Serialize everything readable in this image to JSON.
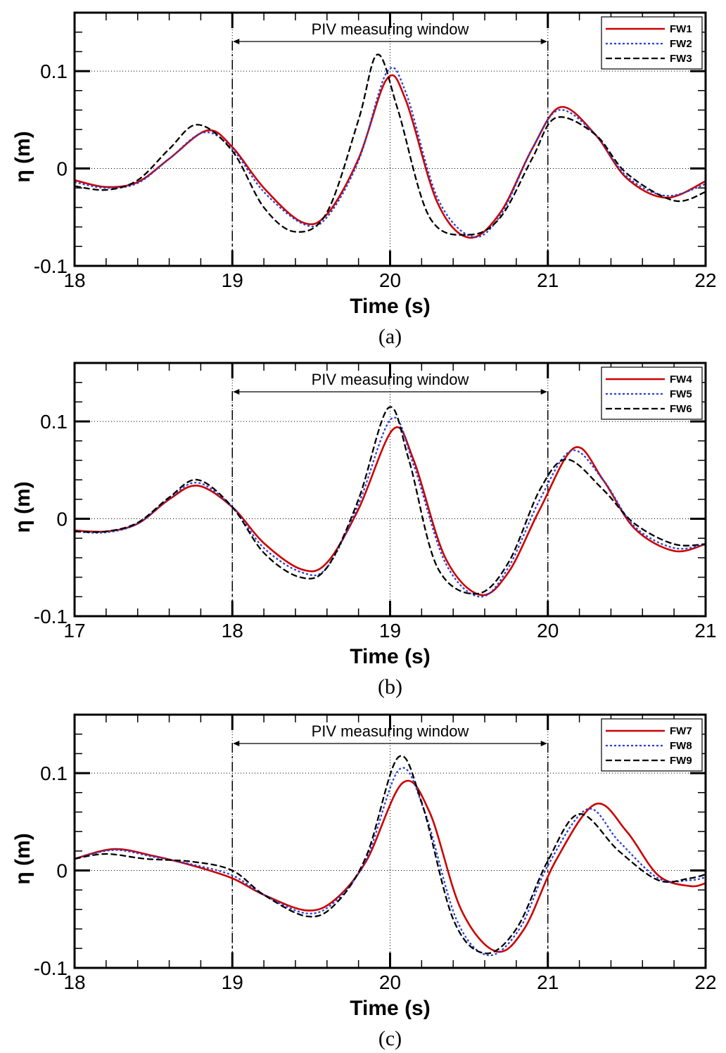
{
  "chart_data": [
    {
      "type": "line",
      "panel_label": "(a)",
      "xlabel": "Time (s)",
      "ylabel": "η (m)",
      "xlim": [
        18,
        22
      ],
      "ylim": [
        -0.1,
        0.16
      ],
      "xticks": [
        18,
        19,
        20,
        21,
        22
      ],
      "yticks": [
        -0.1,
        0,
        0.1
      ],
      "ytick_labels": [
        "-0.1",
        "0",
        "0.1"
      ],
      "grid": "dotted",
      "window": {
        "label": "PIV measuring window",
        "start": 19,
        "end": 21
      },
      "legend_position": "top-right",
      "series": [
        {
          "name": "FW1",
          "color": "#cc0000",
          "style": "solid",
          "x": [
            18,
            18.2,
            18.4,
            18.6,
            18.84,
            19.0,
            19.2,
            19.44,
            19.6,
            19.8,
            19.98,
            20.1,
            20.3,
            20.5,
            20.7,
            20.9,
            21.08,
            21.3,
            21.5,
            21.75,
            22
          ],
          "y": [
            -0.012,
            -0.019,
            -0.014,
            0.01,
            0.039,
            0.022,
            -0.02,
            -0.055,
            -0.047,
            0.01,
            0.092,
            0.07,
            -0.035,
            -0.071,
            -0.045,
            0.02,
            0.063,
            0.035,
            -0.01,
            -0.03,
            -0.013
          ]
        },
        {
          "name": "FW2",
          "color": "#2a3fd6",
          "style": "dotted",
          "x": [
            18,
            18.2,
            18.4,
            18.6,
            18.82,
            19.0,
            19.2,
            19.45,
            19.6,
            19.8,
            19.98,
            20.1,
            20.3,
            20.52,
            20.7,
            20.9,
            21.07,
            21.3,
            21.5,
            21.75,
            22
          ],
          "y": [
            -0.014,
            -0.02,
            -0.015,
            0.01,
            0.037,
            0.02,
            -0.024,
            -0.057,
            -0.05,
            0.008,
            0.099,
            0.078,
            -0.03,
            -0.07,
            -0.048,
            0.02,
            0.06,
            0.035,
            -0.008,
            -0.028,
            -0.016
          ]
        },
        {
          "name": "FW3",
          "color": "#000000",
          "style": "dashed",
          "x": [
            18,
            18.2,
            18.4,
            18.6,
            18.78,
            19.0,
            19.2,
            19.4,
            19.6,
            19.8,
            19.92,
            20.05,
            20.25,
            20.5,
            20.7,
            20.9,
            21.05,
            21.3,
            21.5,
            21.8,
            22
          ],
          "y": [
            -0.018,
            -0.022,
            -0.012,
            0.02,
            0.045,
            0.018,
            -0.04,
            -0.065,
            -0.045,
            0.05,
            0.117,
            0.06,
            -0.05,
            -0.068,
            -0.05,
            0.01,
            0.052,
            0.035,
            -0.005,
            -0.033,
            -0.024
          ]
        }
      ]
    },
    {
      "type": "line",
      "panel_label": "(b)",
      "xlabel": "Time (s)",
      "ylabel": "η (m)",
      "xlim": [
        17,
        21
      ],
      "ylim": [
        -0.1,
        0.16
      ],
      "xticks": [
        17,
        18,
        19,
        20,
        21
      ],
      "yticks": [
        -0.1,
        0,
        0.1
      ],
      "ytick_labels": [
        "-0.1",
        "0",
        "0.1"
      ],
      "grid": "dotted",
      "window": {
        "label": "PIV measuring window",
        "start": 18,
        "end": 20
      },
      "legend_position": "top-right",
      "series": [
        {
          "name": "FW4",
          "color": "#cc0000",
          "style": "solid",
          "x": [
            17,
            17.2,
            17.4,
            17.6,
            17.78,
            18.0,
            18.2,
            18.44,
            18.6,
            18.8,
            19.02,
            19.15,
            19.35,
            19.57,
            19.75,
            19.95,
            20.17,
            20.35,
            20.55,
            20.8,
            21
          ],
          "y": [
            -0.012,
            -0.013,
            -0.005,
            0.02,
            0.034,
            0.012,
            -0.025,
            -0.052,
            -0.045,
            0.01,
            0.092,
            0.06,
            -0.04,
            -0.078,
            -0.055,
            0.01,
            0.073,
            0.04,
            -0.01,
            -0.033,
            -0.026
          ]
        },
        {
          "name": "FW5",
          "color": "#2a3fd6",
          "style": "dotted",
          "x": [
            17,
            17.2,
            17.4,
            17.6,
            17.78,
            18.0,
            18.2,
            18.44,
            18.6,
            18.8,
            19.01,
            19.15,
            19.35,
            19.57,
            19.75,
            19.95,
            20.15,
            20.35,
            20.55,
            20.8,
            21
          ],
          "y": [
            -0.013,
            -0.014,
            -0.005,
            0.021,
            0.037,
            0.012,
            -0.03,
            -0.055,
            -0.05,
            0.015,
            0.103,
            0.055,
            -0.045,
            -0.08,
            -0.05,
            0.02,
            0.07,
            0.04,
            -0.008,
            -0.03,
            -0.026
          ]
        },
        {
          "name": "FW6",
          "color": "#000000",
          "style": "dashed",
          "x": [
            17,
            17.2,
            17.4,
            17.6,
            17.78,
            18.0,
            18.2,
            18.43,
            18.6,
            18.8,
            18.99,
            19.12,
            19.3,
            19.55,
            19.75,
            19.95,
            20.12,
            20.35,
            20.55,
            20.8,
            21
          ],
          "y": [
            -0.013,
            -0.013,
            -0.004,
            0.022,
            0.04,
            0.012,
            -0.035,
            -0.06,
            -0.05,
            0.02,
            0.114,
            0.06,
            -0.05,
            -0.077,
            -0.045,
            0.03,
            0.061,
            0.03,
            -0.005,
            -0.026,
            -0.026
          ]
        }
      ]
    },
    {
      "type": "line",
      "panel_label": "(c)",
      "xlabel": "Time (s)",
      "ylabel": "η (m)",
      "xlim": [
        18,
        22
      ],
      "ylim": [
        -0.1,
        0.16
      ],
      "xticks": [
        18,
        19,
        20,
        21,
        22
      ],
      "yticks": [
        -0.1,
        0,
        0.1
      ],
      "ytick_labels": [
        "-0.1",
        "0",
        "0.1"
      ],
      "grid": "dotted",
      "window": {
        "label": "PIV measuring window",
        "start": 19,
        "end": 21
      },
      "legend_position": "top-right",
      "series": [
        {
          "name": "FW7",
          "color": "#cc0000",
          "style": "solid",
          "x": [
            18,
            18.25,
            18.5,
            18.75,
            19.0,
            19.2,
            19.47,
            19.65,
            19.85,
            20.08,
            20.25,
            20.45,
            20.67,
            20.85,
            21.05,
            21.3,
            21.5,
            21.7,
            21.9,
            22
          ],
          "y": [
            0.012,
            0.022,
            0.015,
            0.005,
            -0.008,
            -0.025,
            -0.041,
            -0.03,
            0.01,
            0.09,
            0.06,
            -0.04,
            -0.083,
            -0.06,
            0.01,
            0.068,
            0.04,
            -0.005,
            -0.016,
            -0.013
          ]
        },
        {
          "name": "FW8",
          "color": "#2a3fd6",
          "style": "dotted",
          "x": [
            18,
            18.25,
            18.5,
            18.75,
            19.0,
            19.2,
            19.47,
            19.65,
            19.85,
            20.06,
            20.22,
            20.42,
            20.62,
            20.82,
            21.0,
            21.25,
            21.45,
            21.7,
            21.9,
            22
          ],
          "y": [
            0.012,
            0.021,
            0.014,
            0.006,
            -0.005,
            -0.025,
            -0.044,
            -0.032,
            0.012,
            0.104,
            0.06,
            -0.05,
            -0.087,
            -0.06,
            0.005,
            0.063,
            0.03,
            -0.008,
            -0.01,
            -0.007
          ]
        },
        {
          "name": "FW9",
          "color": "#000000",
          "style": "dashed",
          "x": [
            18,
            18.2,
            18.45,
            18.75,
            19.0,
            19.2,
            19.47,
            19.65,
            19.85,
            20.05,
            20.2,
            20.4,
            20.6,
            20.8,
            21.0,
            21.2,
            21.45,
            21.7,
            21.9,
            22
          ],
          "y": [
            0.012,
            0.017,
            0.012,
            0.009,
            0.0,
            -0.025,
            -0.047,
            -0.035,
            0.015,
            0.116,
            0.07,
            -0.05,
            -0.085,
            -0.06,
            0.01,
            0.058,
            0.02,
            -0.01,
            -0.008,
            -0.004
          ]
        }
      ]
    }
  ]
}
